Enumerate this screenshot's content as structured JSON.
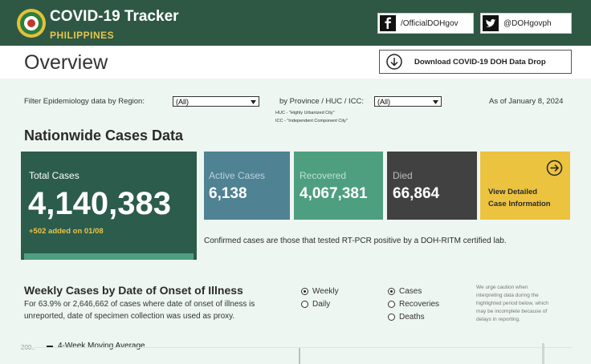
{
  "header": {
    "title": "COVID-19 Tracker",
    "subtitle": "PHILIPPINES",
    "facebook": "/OfficialDOHgov",
    "twitter": "@DOHgovph"
  },
  "overview": {
    "title": "Overview",
    "download_button": "Download COVID-19 DOH Data Drop"
  },
  "filters": {
    "region_label": "Filter Epidemiology data by Region:",
    "region_value": "(All)",
    "province_label": "by Province / HUC / ICC:",
    "province_value": "(All)",
    "notes": [
      "HUC - \"Highly Urbanized City\"",
      "ICC - \"Independent Component City\""
    ],
    "as_of": "As of January 8, 2024"
  },
  "nationwide": {
    "title": "Nationwide Cases Data",
    "total": {
      "label": "Total Cases",
      "value": "4,140,383",
      "added": "+502 added on 01/08"
    },
    "active": {
      "label": "Active Cases",
      "value": "6,138"
    },
    "recovered": {
      "label": "Recovered",
      "value": "4,067,381"
    },
    "died": {
      "label": "Died",
      "value": "66,864"
    },
    "detail_link": [
      "View Detailed",
      "Case Information"
    ],
    "note": "Confirmed cases are those that tested RT-PCR positive by a DOH-RITM certified lab."
  },
  "weekly": {
    "title": "Weekly Cases by Date of Onset of Illness",
    "description": [
      "For 63.9% or 2,646,662 of cases where date of onset of illness is",
      "unreported, date of specimen collection was used as proxy."
    ],
    "period_options": [
      {
        "label": "Weekly",
        "selected": true
      },
      {
        "label": "Daily",
        "selected": false
      }
    ],
    "metric_options": [
      {
        "label": "Cases",
        "selected": true
      },
      {
        "label": "Recoveries",
        "selected": false
      },
      {
        "label": "Deaths",
        "selected": false
      }
    ],
    "caution": [
      "We urge caution when",
      "interpreting data during the",
      "highlighted period below, which",
      "may be incomplete because of",
      "delays in reporting."
    ],
    "axis_label": "200..",
    "legend": "4-Week Moving Average"
  }
}
